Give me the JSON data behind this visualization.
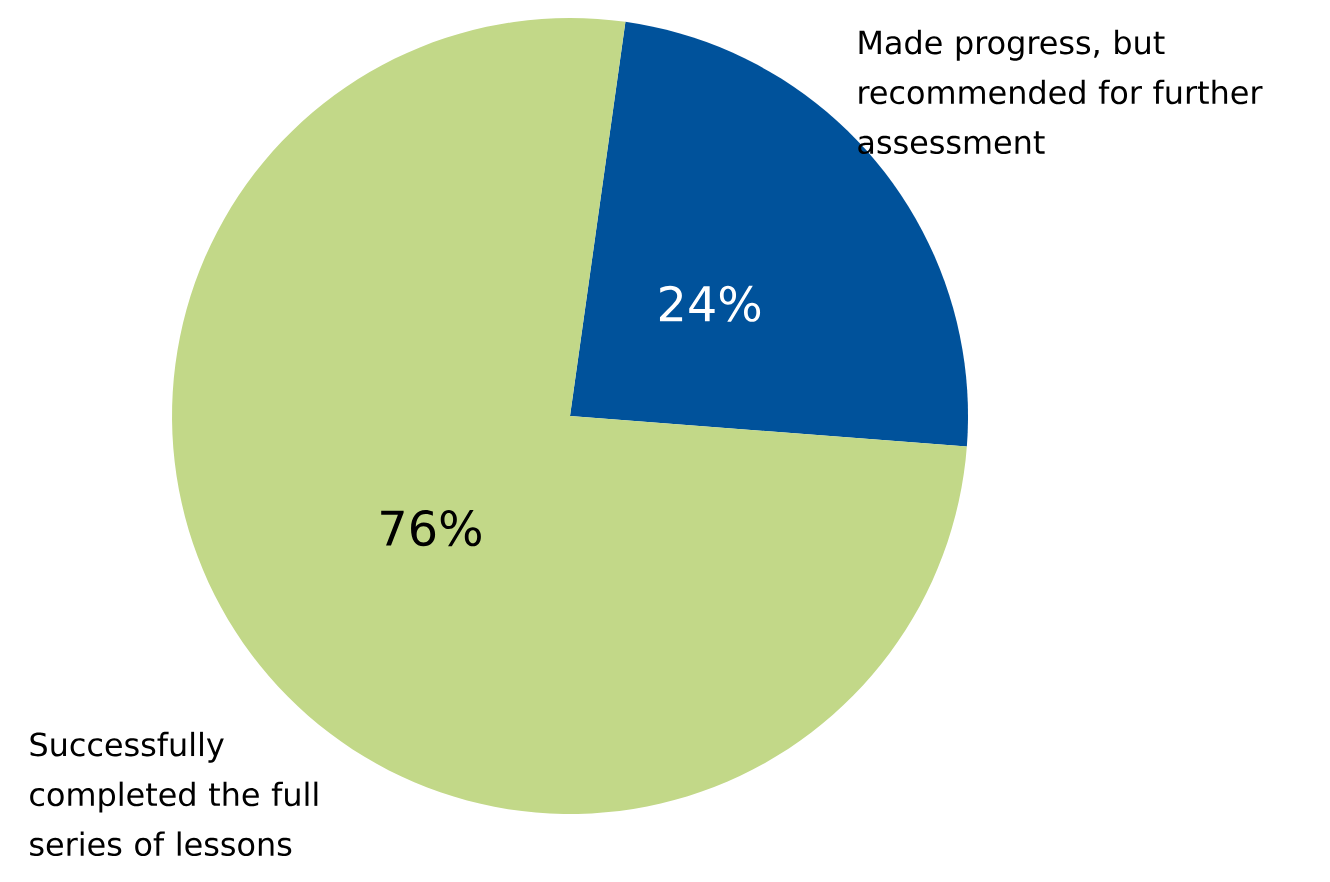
{
  "chart_data": {
    "type": "pie",
    "categories": [
      "Made progress, but recommended for further assessment",
      "Successfully completed the full series of lessons"
    ],
    "values": [
      24,
      76
    ],
    "colors": [
      "#00529b",
      "#c2d888"
    ],
    "value_labels": [
      "24%",
      "76%"
    ]
  }
}
